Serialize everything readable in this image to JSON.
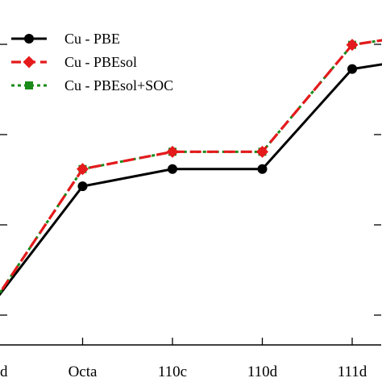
{
  "chart_data": {
    "type": "line",
    "title": "",
    "xlabel": "",
    "ylabel": "",
    "categories": [
      "d",
      "Octa",
      "110c",
      "110d",
      "111d",
      ""
    ],
    "series": [
      {
        "name": "Cu - PBE",
        "color": "#000000",
        "dash": "solid",
        "marker": "circle",
        "values": [
          0.1,
          1.8,
          2.05,
          2.05,
          3.5,
          3.7
        ]
      },
      {
        "name": "Cu - PBEsol",
        "color": "#e41a1c",
        "dash": "dashed",
        "marker": "diamond",
        "values": [
          0.1,
          2.05,
          2.3,
          2.3,
          3.85,
          4.05
        ]
      },
      {
        "name": "Cu - PBEsol+SOC",
        "color": "#1a8a1a",
        "dash": "dotted",
        "marker": "square",
        "values": [
          0.1,
          2.05,
          2.3,
          2.3,
          3.85,
          4.05
        ]
      }
    ],
    "ylim": [
      -0.5,
      4.5
    ],
    "grid": false,
    "legend": "top-left"
  }
}
